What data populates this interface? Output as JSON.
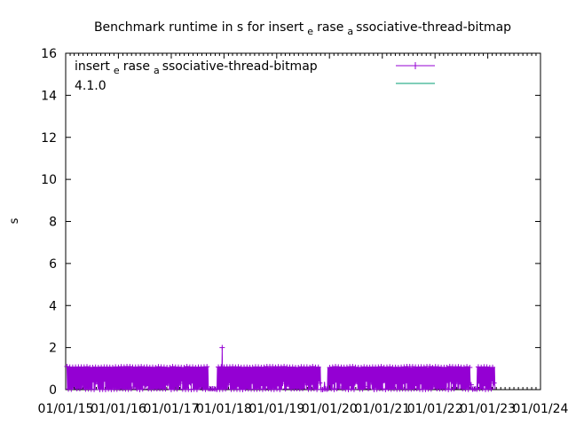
{
  "colors": {
    "series_main": "#9400d3",
    "series_ref": "#009e73",
    "axis": "#000000",
    "background": "#ffffff"
  },
  "chart_data": {
    "type": "line",
    "title": {
      "prefix": "Benchmark runtime in s for insert",
      "sub1": "e",
      "mid": "rase",
      "sub2": "a",
      "suffix": "ssociative-thread-bitmap"
    },
    "xlabel": "",
    "ylabel": "s",
    "ylim": [
      0,
      16
    ],
    "yticks": [
      "0",
      "2",
      "4",
      "6",
      "8",
      "10",
      "12",
      "14",
      "16"
    ],
    "xlim": [
      "2015-01-01",
      "2024-01-01"
    ],
    "xticks": [
      "01/01/15",
      "01/01/16",
      "01/01/17",
      "01/01/18",
      "01/01/19",
      "01/01/20",
      "01/01/21",
      "01/01/22",
      "01/01/23",
      "01/01/24"
    ],
    "grid": false,
    "legend_position": "top-right",
    "series": [
      {
        "name": {
          "prefix": "insert",
          "sub1": "e",
          "mid": "rase",
          "sub2": "a",
          "suffix": "ssociative-thread-bitmap"
        },
        "style": "linespoints",
        "typical_range": [
          0.0,
          1.1
        ],
        "x_start": "2015-01-10",
        "x_end": "2023-02-20",
        "peak": {
          "x": "2017-12-20",
          "y": 2.0
        }
      },
      {
        "name": "4.1.0",
        "style": "line",
        "values": []
      }
    ]
  }
}
